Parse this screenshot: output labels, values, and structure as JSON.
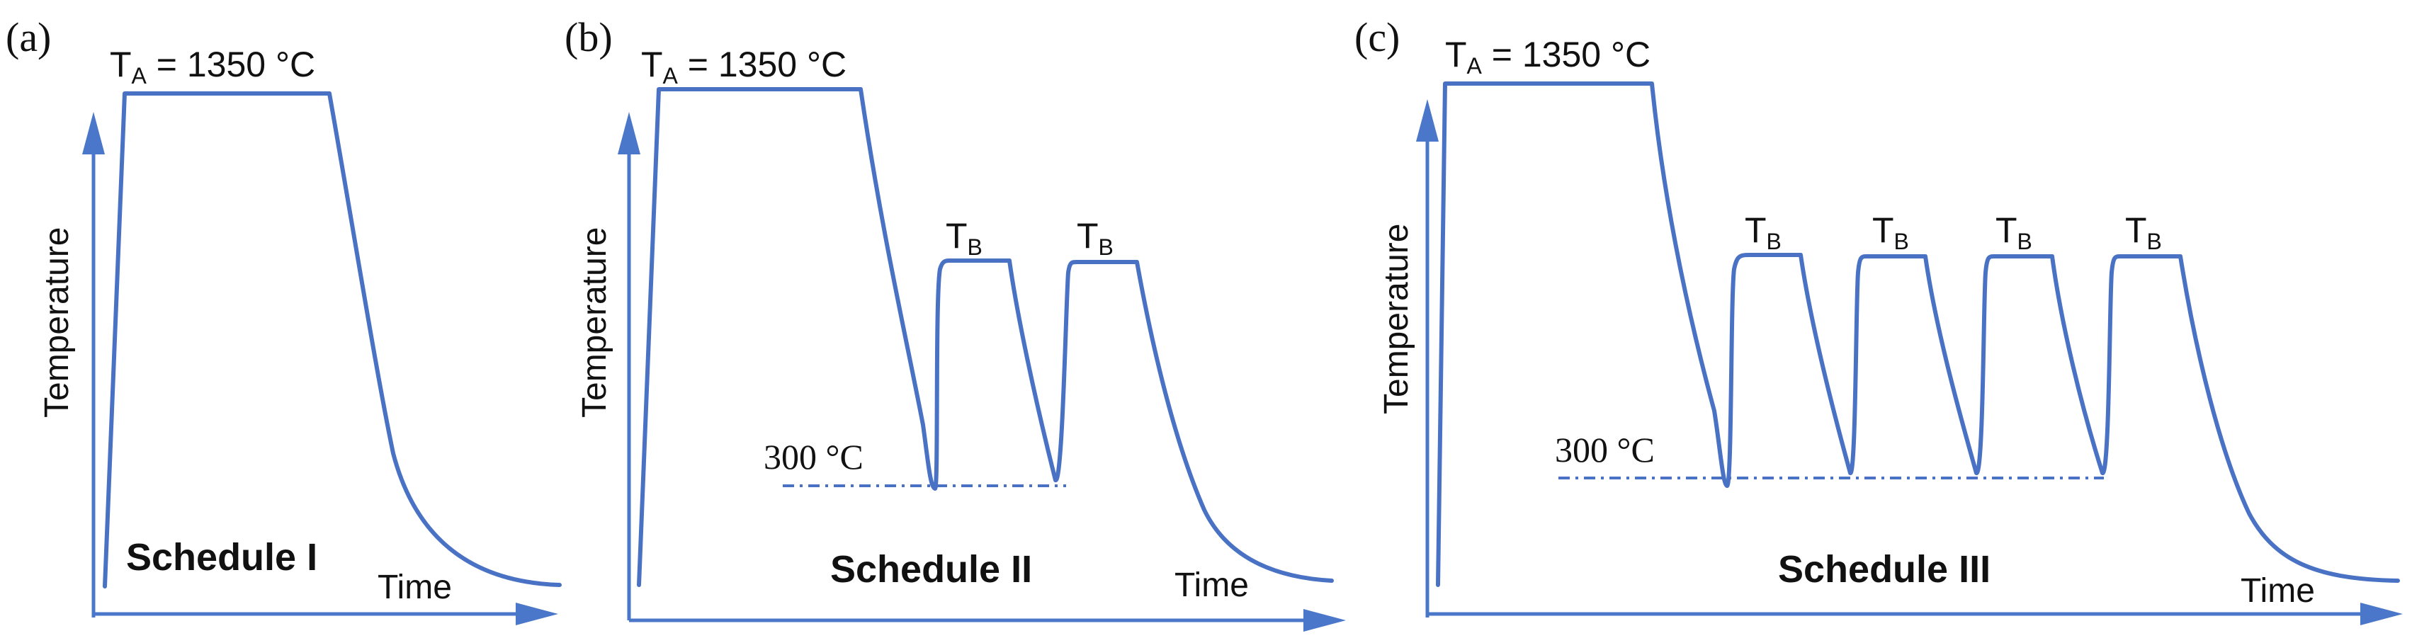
{
  "panels": [
    {
      "letter": "(a)",
      "ta_label": "T",
      "ta_sub": "A",
      "ta_value": " = 1350 °C",
      "ylabel": "Temperature",
      "xlabel": "Time",
      "schedule": "Schedule I"
    },
    {
      "letter": "(b)",
      "ta_label": "T",
      "ta_sub": "A",
      "ta_value": " = 1350 °C",
      "ylabel": "Temperature",
      "xlabel": "Time",
      "schedule": "Schedule II",
      "quench_temp": "300 °C",
      "tb_label": "T",
      "tb_sub": "B"
    },
    {
      "letter": "(c)",
      "ta_label": "T",
      "ta_sub": "A",
      "ta_value": " = 1350 °C",
      "ylabel": "Temperature",
      "xlabel": "Time",
      "schedule": "Schedule III",
      "quench_temp": "300 °C",
      "tb_label": "T",
      "tb_sub": "B"
    }
  ],
  "colors": {
    "curve": "#4a72c4",
    "axis": "#4a77c9",
    "text": "#111111"
  }
}
